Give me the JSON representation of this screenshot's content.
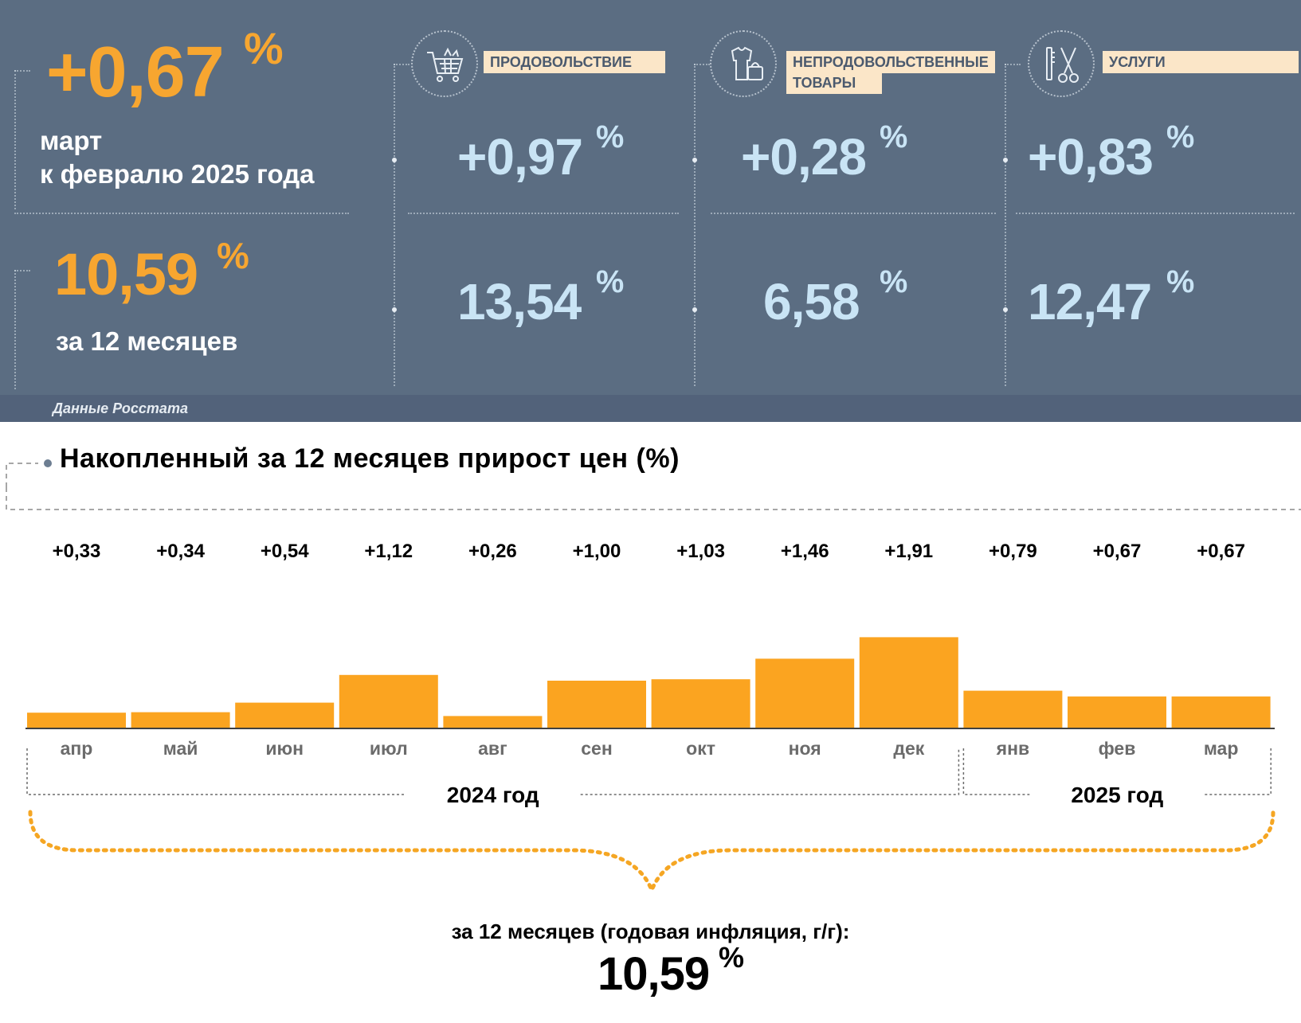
{
  "summary": {
    "monthly_value": "+0,67",
    "monthly_unit": "%",
    "monthly_caption_line1": "март",
    "monthly_caption_line2": "к февралю 2025 года",
    "annual_value": "10,59",
    "annual_unit": "%",
    "annual_caption": "за 12 месяцев"
  },
  "categories": [
    {
      "label": "ПРОДОВОЛЬСТВИЕ",
      "label_line2": "",
      "icon": "shopping-cart-icon",
      "monthly": "+0,97",
      "annual": "13,54",
      "unit": "%"
    },
    {
      "label": "НЕПРОДОВОЛЬСТВЕННЫЕ",
      "label_line2": "ТОВАРЫ",
      "icon": "clothing-bag-icon",
      "monthly": "+0,28",
      "annual": "6,58",
      "unit": "%"
    },
    {
      "label": "УСЛУГИ",
      "label_line2": "",
      "icon": "scissors-comb-icon",
      "monthly": "+0,83",
      "annual": "12,47",
      "unit": "%"
    }
  ],
  "source": "Данные Росстата",
  "chart_title": "Накопленный за 12 месяцев прирост цен (%)",
  "chart_data": {
    "type": "bar",
    "title": "Накопленный за 12 месяцев прирост цен (%)",
    "categories": [
      "апр",
      "май",
      "июн",
      "июл",
      "авг",
      "сен",
      "окт",
      "ноя",
      "дек",
      "янв",
      "фев",
      "мар"
    ],
    "values": [
      0.33,
      0.34,
      0.54,
      1.12,
      0.26,
      1.0,
      1.03,
      1.46,
      1.91,
      0.79,
      0.67,
      0.67
    ],
    "data_labels": [
      "+0,33",
      "+0,34",
      "+0,54",
      "+1,12",
      "+0,26",
      "+1,00",
      "+1,03",
      "+1,46",
      "+1,91",
      "+0,79",
      "+0,67",
      "+0,67"
    ],
    "year_groups": [
      {
        "label": "2024 год",
        "months": 9
      },
      {
        "label": "2025 год",
        "months": 3
      }
    ],
    "bar_color": "#fba420"
  },
  "annual_summary": {
    "label": "за 12 месяцев (годовая инфляция, г/г):",
    "value": "10,59",
    "unit": "%"
  },
  "colors": {
    "panel_bg": "#5b6d82",
    "accent_orange": "#f7a630",
    "light_blue": "#c9e4f5",
    "label_bg": "#fbe6c8"
  }
}
